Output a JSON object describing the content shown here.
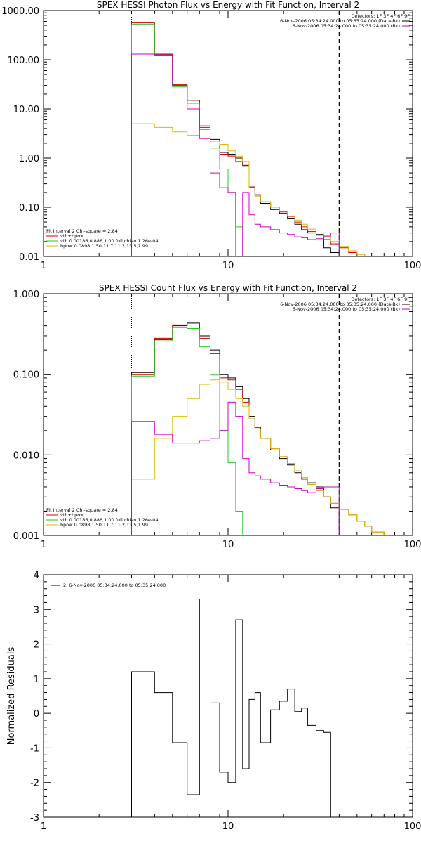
{
  "colors": {
    "data": "#000000",
    "total": "#cc0000",
    "vth": "#22cc22",
    "bpow": "#ddbb00",
    "bk": "#cc00cc"
  },
  "chart_data": [
    {
      "type": "line",
      "title": "SPEX HESSI Photon Flux vs Energy with Fit Function, Interval 2",
      "xscale": "log",
      "yscale": "log",
      "xlim": [
        1,
        100
      ],
      "ylim": [
        0.01,
        1000
      ],
      "xticks": [
        "1",
        "10",
        "100"
      ],
      "yticks": [
        "0.01",
        "0.10",
        "1.00",
        "10.00",
        "100.00",
        "1000.00"
      ],
      "xlabel": "",
      "ylabel": "",
      "fit_start": 3,
      "fit_end": 40,
      "legend_tr": [
        "Detectors: 1F 3F 4F 6F 9F",
        "6-Nov-2006 05:34:24.000 to 05:35:24.000 (Data-Bk)",
        "6-Nov-2006 05:34:24.000 to 05:35:24.000 (Bk)"
      ],
      "legend_bl": [
        "Fit Interval 2   Chi-square = 2.84",
        "vth+bpow",
        "vth 0.00186,0.886,1.00  full chian 1.26e-04",
        "bpow 0.0898,1.50,11.7,11.2,13.5,1.99"
      ],
      "edges": [
        3,
        4,
        5,
        6,
        7,
        8,
        9,
        10,
        11,
        12,
        13,
        14,
        15,
        17,
        19,
        21,
        23,
        25,
        27,
        30,
        33,
        36,
        40,
        45,
        50,
        55,
        60
      ],
      "series": [
        {
          "name": "Data-Bk",
          "color": "#000000",
          "values": [
            520,
            125,
            30,
            15,
            4.5,
            2.4,
            1.3,
            1.2,
            1.0,
            0.7,
            0.25,
            0.17,
            0.12,
            0.09,
            0.075,
            0.06,
            0.045,
            0.035,
            0.03,
            0.028,
            0.015,
            0.012,
            null,
            null,
            null,
            null
          ]
        },
        {
          "name": "vth+bpow",
          "color": "#cc0000",
          "values": [
            560,
            130,
            31,
            15,
            4.2,
            2.2,
            1.2,
            1.1,
            0.85,
            0.75,
            0.26,
            0.18,
            0.13,
            0.1,
            0.08,
            0.065,
            0.05,
            0.04,
            0.032,
            0.027,
            0.022,
            0.018,
            0.015,
            0.012,
            0.011,
            0.01
          ]
        },
        {
          "name": "vth",
          "color": "#22cc22",
          "values": [
            520,
            120,
            28,
            13,
            3.8,
            1.6,
            0.6,
            0.2,
            0.04,
            0.01,
            null,
            null,
            null,
            null,
            null,
            null,
            null,
            null,
            null,
            null,
            null,
            null,
            null,
            null,
            null,
            null
          ]
        },
        {
          "name": "bpow",
          "color": "#ddbb00",
          "values": [
            5,
            4.2,
            3.4,
            2.9,
            2.5,
            2.2,
            1.9,
            1.4,
            1.1,
            0.85,
            0.25,
            0.17,
            0.13,
            0.1,
            0.082,
            0.066,
            0.055,
            0.045,
            0.036,
            0.03,
            0.025,
            0.02,
            0.016,
            0.013,
            0.011,
            0.01
          ]
        },
        {
          "name": "Bk",
          "color": "#cc00cc",
          "values": [
            130,
            125,
            30,
            10,
            2.5,
            0.5,
            0.25,
            0.2,
            0.01,
            0.2,
            0.07,
            0.045,
            0.04,
            0.035,
            0.03,
            0.028,
            0.025,
            0.024,
            0.022,
            0.023,
            0.026,
            0.03,
            null,
            null,
            null,
            null
          ]
        }
      ]
    },
    {
      "type": "line",
      "title": "SPEX HESSI Count Flux vs Energy with Fit Function, Interval 2",
      "xscale": "log",
      "yscale": "log",
      "xlim": [
        1,
        100
      ],
      "ylim": [
        0.001,
        1
      ],
      "xticks": [
        "1",
        "10",
        "100"
      ],
      "yticks": [
        "0.001",
        "0.010",
        "0.100",
        "1.000"
      ],
      "xlabel": "",
      "ylabel": "",
      "fit_start": 3,
      "fit_end": 40,
      "legend_tr": [
        "Detectors: 1F 3F 4F 6F 9F",
        "6-Nov-2006 05:34:24.000 to 05:35:24.000 (Data-Bk)",
        "6-Nov-2006 05:34:24.000 to 05:35:24.000 (Bk)"
      ],
      "legend_bl": [
        "Fit Interval 2   Chi-square = 2.84",
        "vth+bpow",
        "vth 0.00186,0.886,1.00  full chian 1.26e-04",
        "bpow 0.0898,1.50,11.7,11.2,13.5,1.99"
      ],
      "edges": [
        3,
        4,
        5,
        6,
        7,
        8,
        9,
        10,
        11,
        12,
        13,
        14,
        15,
        17,
        19,
        21,
        23,
        25,
        27,
        30,
        33,
        36,
        40,
        45,
        50,
        55,
        60,
        70
      ],
      "series": [
        {
          "name": "Data-Bk",
          "color": "#000000",
          "values": [
            0.105,
            0.27,
            0.4,
            0.44,
            0.3,
            0.2,
            0.1,
            0.09,
            0.07,
            0.05,
            0.03,
            0.022,
            0.016,
            0.0115,
            0.009,
            0.0075,
            0.006,
            0.005,
            0.0045,
            0.004,
            0.003,
            0.0022,
            null,
            null,
            null,
            null,
            null
          ]
        },
        {
          "name": "vth+bpow",
          "color": "#cc0000",
          "values": [
            0.1,
            0.28,
            0.41,
            0.43,
            0.28,
            0.18,
            0.09,
            0.085,
            0.065,
            0.045,
            0.028,
            0.021,
            0.016,
            0.012,
            0.0095,
            0.0078,
            0.0063,
            0.0052,
            0.0043,
            0.0036,
            0.003,
            0.0025,
            0.0021,
            0.0018,
            0.0015,
            0.0013,
            0.0011
          ]
        },
        {
          "name": "vth",
          "color": "#22cc22",
          "values": [
            0.095,
            0.26,
            0.38,
            0.37,
            0.22,
            0.1,
            0.02,
            0.008,
            0.002,
            0.001,
            null,
            null,
            null,
            null,
            null,
            null,
            null,
            null,
            null,
            null,
            null,
            null,
            null,
            null,
            null,
            null,
            null
          ]
        },
        {
          "name": "bpow",
          "color": "#ddbb00",
          "values": [
            0.005,
            0.016,
            0.03,
            0.05,
            0.075,
            0.085,
            0.08,
            0.065,
            0.05,
            0.04,
            0.028,
            0.021,
            0.016,
            0.012,
            0.0095,
            0.0078,
            0.0063,
            0.0052,
            0.0043,
            0.0036,
            0.003,
            0.0025,
            0.0021,
            0.0018,
            0.0015,
            0.0013,
            0.0011
          ]
        },
        {
          "name": "Bk",
          "color": "#cc00cc",
          "values": [
            0.026,
            0.018,
            0.014,
            0.014,
            0.015,
            0.016,
            0.02,
            0.045,
            0.03,
            0.009,
            0.006,
            0.0055,
            0.005,
            0.0045,
            0.0042,
            0.004,
            0.0038,
            0.0036,
            0.0034,
            0.0038,
            0.004,
            0.004,
            null,
            null,
            null,
            null,
            null
          ]
        }
      ]
    },
    {
      "type": "line",
      "title": "",
      "xscale": "log",
      "yscale": "linear",
      "xlim": [
        1,
        100
      ],
      "ylim": [
        -3,
        4
      ],
      "xticks": [
        "1",
        "10",
        "100"
      ],
      "yticks": [
        "-3",
        "-2",
        "-1",
        "0",
        "1",
        "2",
        "3",
        "4"
      ],
      "xlabel": "",
      "ylabel": "Normalized Residuals",
      "legend_tr": [],
      "legend_bl": [],
      "legend": "2,  6-Nov-2006 05:34:24.000 to 05:35:24.000",
      "edges": [
        3,
        4,
        5,
        6,
        7,
        8,
        9,
        10,
        11,
        12,
        13,
        14,
        15,
        17,
        19,
        21,
        23,
        25,
        27,
        30,
        33,
        36,
        40
      ],
      "series": [
        {
          "name": "2,  6-Nov-2006 05:34:24.000 to 05:35:24.000",
          "color": "#000000",
          "values": [
            1.2,
            0.6,
            -0.85,
            -2.35,
            3.3,
            0.3,
            -1.7,
            -2.0,
            2.7,
            -1.6,
            0.4,
            0.6,
            -0.85,
            0.1,
            0.35,
            0.7,
            0.05,
            0.15,
            -0.35,
            -0.5,
            -0.55,
            -3.0
          ]
        }
      ]
    }
  ]
}
